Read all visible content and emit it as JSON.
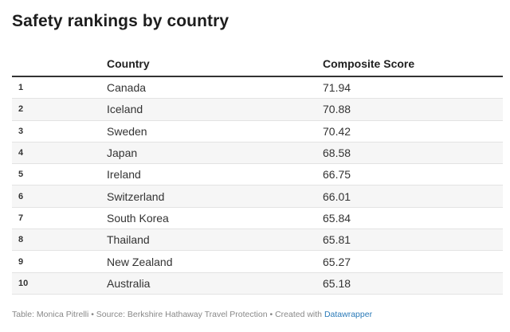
{
  "title": "Safety rankings by country",
  "table": {
    "columns": [
      "",
      "Country",
      "Composite Score"
    ],
    "rows": [
      {
        "rank": "1",
        "country": "Canada",
        "score": "71.94"
      },
      {
        "rank": "2",
        "country": "Iceland",
        "score": "70.88"
      },
      {
        "rank": "3",
        "country": "Sweden",
        "score": "70.42"
      },
      {
        "rank": "4",
        "country": "Japan",
        "score": "68.58"
      },
      {
        "rank": "5",
        "country": "Ireland",
        "score": "66.75"
      },
      {
        "rank": "6",
        "country": "Switzerland",
        "score": "66.01"
      },
      {
        "rank": "7",
        "country": "South Korea",
        "score": "65.84"
      },
      {
        "rank": "8",
        "country": "Thailand",
        "score": "65.81"
      },
      {
        "rank": "9",
        "country": "New Zealand",
        "score": "65.27"
      },
      {
        "rank": "10",
        "country": "Australia",
        "score": "65.18"
      }
    ]
  },
  "footer": {
    "text": "Table: Monica Pitrelli • Source: Berkshire Hathaway Travel Protection • Created with",
    "link": "Datawrapper"
  }
}
